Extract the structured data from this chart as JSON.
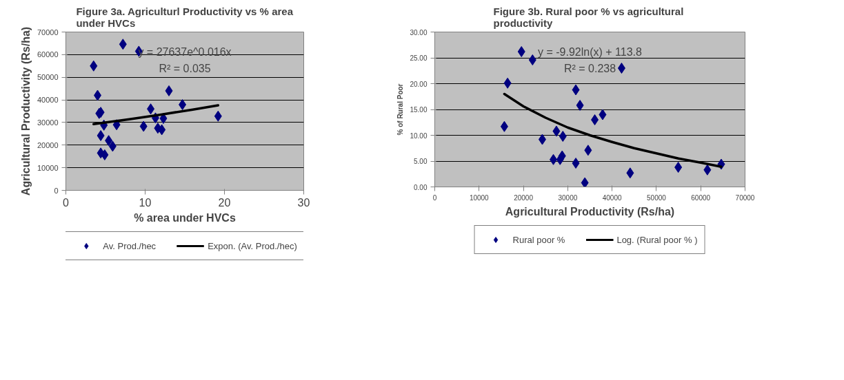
{
  "chart_data": [
    {
      "type": "scatter",
      "title": "Figure 3a. Agriculturl Productivity vs % area under HVCs",
      "xlabel": "% area under HVCs",
      "ylabel": "Agricultural Productivity (Rs/ha)",
      "annotations": [
        "y = 27637e^0.016x",
        "R² = 0.035"
      ],
      "series": [
        {
          "name": "Av. Prod./hec",
          "color": "#000080",
          "marker": "diamond",
          "x": [
            3.5,
            4.0,
            4.2,
            4.4,
            4.4,
            4.8,
            4.4,
            4.9,
            5.4,
            5.9,
            6.4,
            7.2,
            9.2,
            9.8,
            10.7,
            11.3,
            11.6,
            12.1,
            12.3,
            13.0,
            14.7,
            19.2
          ],
          "values": [
            55000,
            42000,
            34000,
            34500,
            24200,
            28800,
            16500,
            15700,
            22000,
            19500,
            29000,
            64600,
            61500,
            28300,
            36000,
            32000,
            27500,
            26800,
            31800,
            44000,
            37900,
            32800
          ]
        },
        {
          "name": "Expon. (Av. Prod./hec)",
          "type": "line",
          "color": "#000000",
          "marker": "none",
          "line_style": "solid",
          "x": [
            3.5,
            8,
            12,
            16,
            19.2
          ],
          "values": [
            29300,
            31400,
            33500,
            35700,
            37600
          ]
        }
      ],
      "xlim": [
        0,
        30
      ],
      "xticks": [
        0,
        10,
        20,
        30
      ],
      "ylim": [
        0,
        70000
      ],
      "yticks": [
        0,
        10000,
        20000,
        30000,
        40000,
        50000,
        60000,
        70000
      ],
      "grid": "y",
      "legend": "bottom"
    },
    {
      "type": "scatter",
      "title": "Figure 3b. Rural poor %  vs agricultural productivity",
      "xlabel": "Agricultural Productivity (Rs/ha)",
      "ylabel": "% of Rural Poor",
      "annotations": [
        "y = -9.92ln(x) + 113.8",
        "R² = 0.238"
      ],
      "series": [
        {
          "name": "Rural poor %",
          "color": "#000080",
          "marker": "diamond",
          "x": [
            22060,
            19560,
            42150,
            16430,
            31820,
            32760,
            37870,
            36100,
            15700,
            27440,
            28900,
            24260,
            34590,
            28740,
            26760,
            28270,
            31820,
            64630,
            54930,
            61500,
            44080,
            33860
          ],
          "values": [
            24.6,
            26.2,
            23.0,
            20.1,
            18.8,
            15.8,
            14.0,
            13.0,
            11.7,
            10.8,
            9.8,
            9.2,
            7.1,
            6.0,
            5.3,
            5.3,
            4.6,
            4.4,
            3.8,
            3.3,
            2.7,
            0.8
          ]
        },
        {
          "name": "Log. (Rural poor % )",
          "type": "line",
          "color": "#000000",
          "marker": "none",
          "line_style": "solid",
          "x": [
            15700,
            20000,
            25000,
            30000,
            35000,
            40000,
            45000,
            50000,
            55000,
            60000,
            64630
          ],
          "values": [
            18.0,
            15.6,
            13.4,
            11.5,
            10.0,
            8.7,
            7.5,
            6.5,
            5.5,
            4.7,
            3.9
          ]
        }
      ],
      "xlim": [
        0,
        70000
      ],
      "xticks": [
        0,
        10000,
        20000,
        30000,
        40000,
        50000,
        60000,
        70000
      ],
      "ylim": [
        0,
        30
      ],
      "yticks": [
        {
          "value": 0,
          "label": "0.00"
        },
        {
          "value": 5,
          "label": "5.00"
        },
        {
          "value": 10,
          "label": "10.00"
        },
        {
          "value": 15,
          "label": "15.00"
        },
        {
          "value": 20,
          "label": "20.00"
        },
        {
          "value": 25,
          "label": "25.00"
        },
        {
          "value": 30,
          "label": "30.00"
        }
      ],
      "grid": "y",
      "legend": "bottom"
    }
  ]
}
